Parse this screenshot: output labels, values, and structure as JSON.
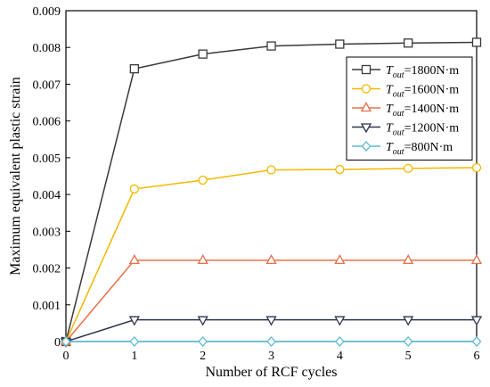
{
  "chart_data": {
    "type": "line",
    "xlabel": "Number of RCF cycles",
    "ylabel": "Maximum equivalent plastic strain",
    "x": [
      0,
      1,
      2,
      3,
      4,
      5,
      6
    ],
    "xlim": [
      0,
      6
    ],
    "ylim": [
      0,
      0.009
    ],
    "x_ticks": [
      "0",
      "1",
      "2",
      "3",
      "4",
      "5",
      "6"
    ],
    "y_ticks": [
      "0",
      "0.001",
      "0.002",
      "0.003",
      "0.004",
      "0.005",
      "0.006",
      "0.007",
      "0.008",
      "0.009"
    ],
    "grid": false,
    "legend_position": "top-right",
    "series": [
      {
        "name": "T_out=1800N·m",
        "legend_main": "T",
        "legend_sub": "out",
        "legend_rest": "=1800N·m",
        "color": "#3a3a3a",
        "marker": "square",
        "values": [
          0,
          0.00742,
          0.00782,
          0.00804,
          0.00809,
          0.00812,
          0.00814
        ]
      },
      {
        "name": "T_out=1600N·m",
        "legend_main": "T",
        "legend_sub": "out",
        "legend_rest": "=1600N·m",
        "color": "#f5b800",
        "marker": "circle",
        "values": [
          0,
          0.00415,
          0.00439,
          0.00467,
          0.00468,
          0.00471,
          0.00473
        ]
      },
      {
        "name": "T_out=1400N·m",
        "legend_main": "T",
        "legend_sub": "out",
        "legend_rest": "=1400N·m",
        "color": "#e8704a",
        "marker": "triangle-up",
        "values": [
          0,
          0.00221,
          0.00221,
          0.00221,
          0.00221,
          0.00221,
          0.00221
        ]
      },
      {
        "name": "T_out=1200N·m",
        "legend_main": "T",
        "legend_sub": "out",
        "legend_rest": "=1200N·m",
        "color": "#2e3550",
        "marker": "triangle-down",
        "values": [
          0,
          0.00059,
          0.00059,
          0.00059,
          0.00059,
          0.00059,
          0.00059
        ]
      },
      {
        "name": "T_out=800N·m",
        "legend_main": "T",
        "legend_sub": "out",
        "legend_rest": "=800N·m",
        "color": "#5bb8d6",
        "marker": "diamond",
        "values": [
          0,
          0,
          0,
          0,
          0,
          0,
          0
        ]
      }
    ]
  }
}
